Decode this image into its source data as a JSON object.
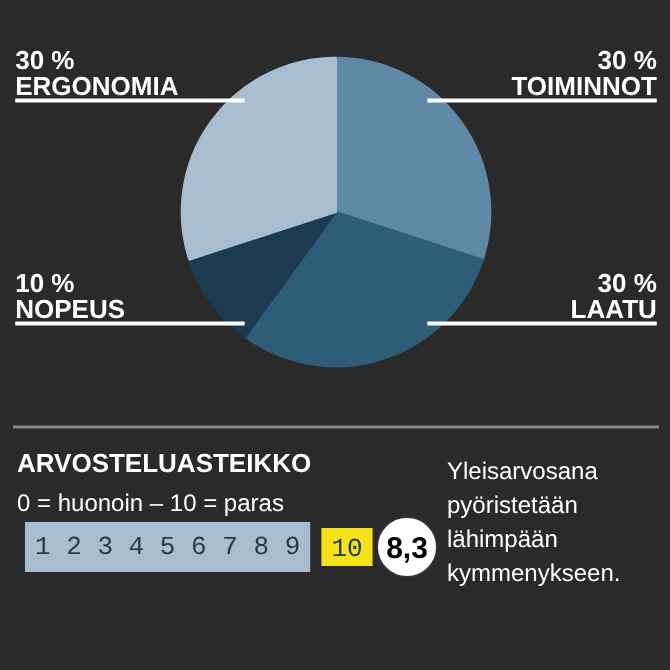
{
  "chart_data": [
    {
      "type": "pie",
      "categories": [
        "TOIMINNOT",
        "LAATU",
        "NOPEUS",
        "ERGONOMIA"
      ],
      "values": [
        30,
        30,
        10,
        30
      ],
      "colors": [
        "#5f89a6",
        "#2f5d78",
        "#1d3b50",
        "#a8bdcf"
      ],
      "value_labels": [
        "30 %",
        "30 %",
        "10 %",
        "30 %"
      ]
    },
    {
      "type": "other",
      "title": "ARVOSTELUASTEIKKO",
      "subtitle": "0 = huonoin – 10 = paras",
      "categories": [
        "1",
        "2",
        "3",
        "4",
        "5",
        "6",
        "7",
        "8",
        "9",
        "10"
      ],
      "colors": [
        "#a8bdcf",
        "#a8bdcf",
        "#a8bdcf",
        "#a8bdcf",
        "#a8bdcf",
        "#a8bdcf",
        "#a8bdcf",
        "#a8bdcf",
        "#a8bdcf",
        "#f5e21b"
      ],
      "annotations": [
        "8,3",
        "Yleisarvosana pyöristetään lähimpään kymmenykseen."
      ]
    }
  ]
}
